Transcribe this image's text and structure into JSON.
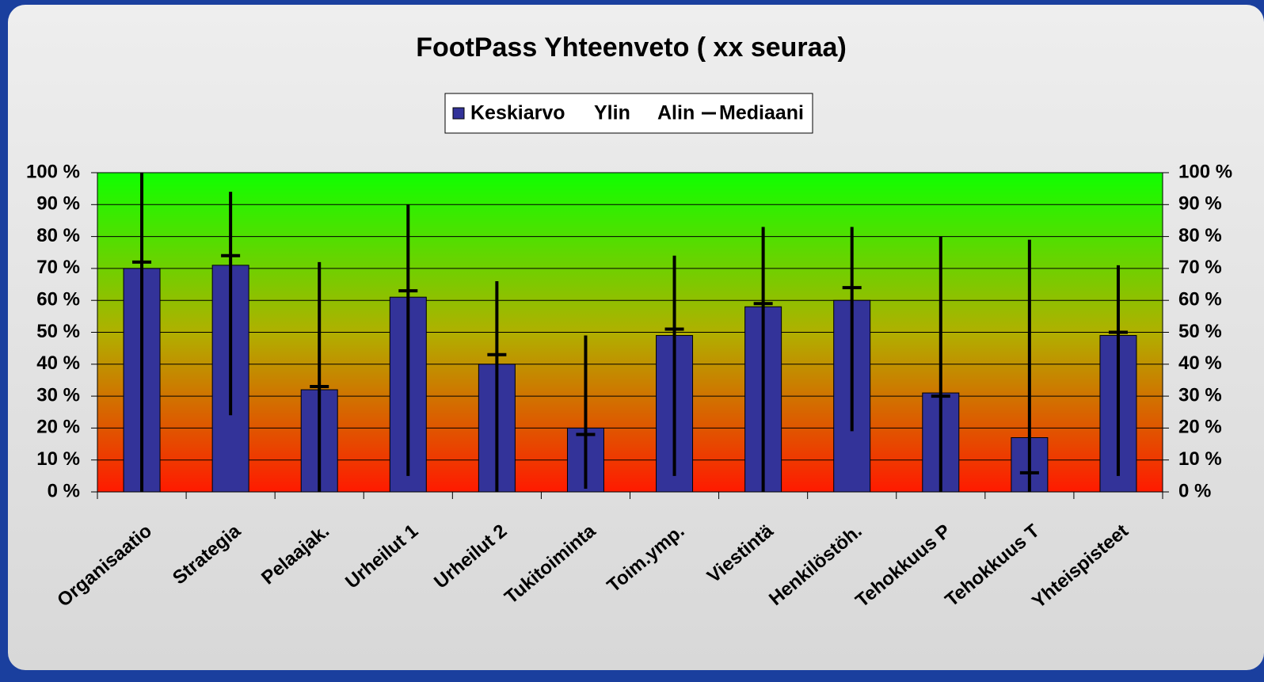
{
  "chart_data": {
    "type": "bar",
    "title": "FootPass Yhteenveto ( xx seuraa)",
    "categories": [
      "Organisaatio",
      "Strategia",
      "Pelaajak.",
      "Urheilut 1",
      "Urheilut 2",
      "Tukitoiminta",
      "Toim.ymp.",
      "Viestintä",
      "Henkilöstöh.",
      "Tehokkuus P",
      "Tehokkuus T",
      "Yhteispisteet"
    ],
    "series": [
      {
        "name": "Keskiarvo",
        "color": "#333399",
        "values": [
          70,
          71,
          32,
          61,
          40,
          20,
          49,
          58,
          60,
          31,
          17,
          49
        ]
      },
      {
        "name": "Ylin",
        "color": "#000000",
        "values": [
          100,
          94,
          72,
          90,
          66,
          49,
          74,
          83,
          83,
          80,
          79,
          71
        ]
      },
      {
        "name": "Alin",
        "color": "#000000",
        "values": [
          0,
          24,
          0,
          5,
          0,
          1,
          5,
          0,
          19,
          0,
          0,
          5
        ]
      },
      {
        "name": "Mediaani",
        "color": "#000000",
        "values": [
          72,
          74,
          33,
          63,
          43,
          18,
          51,
          59,
          64,
          30,
          6,
          50
        ]
      }
    ],
    "ylim": [
      0,
      100
    ],
    "yticks": [
      {
        "value": 0,
        "label": "0 %"
      },
      {
        "value": 10,
        "label": "10 %"
      },
      {
        "value": 20,
        "label": "20 %"
      },
      {
        "value": 30,
        "label": "30 %"
      },
      {
        "value": 40,
        "label": "40 %"
      },
      {
        "value": 50,
        "label": "50 %"
      },
      {
        "value": 60,
        "label": "60 %"
      },
      {
        "value": 70,
        "label": "70 %"
      },
      {
        "value": 80,
        "label": "80 %"
      },
      {
        "value": 90,
        "label": "90 %"
      },
      {
        "value": 100,
        "label": "100 %"
      }
    ],
    "grid": true
  }
}
